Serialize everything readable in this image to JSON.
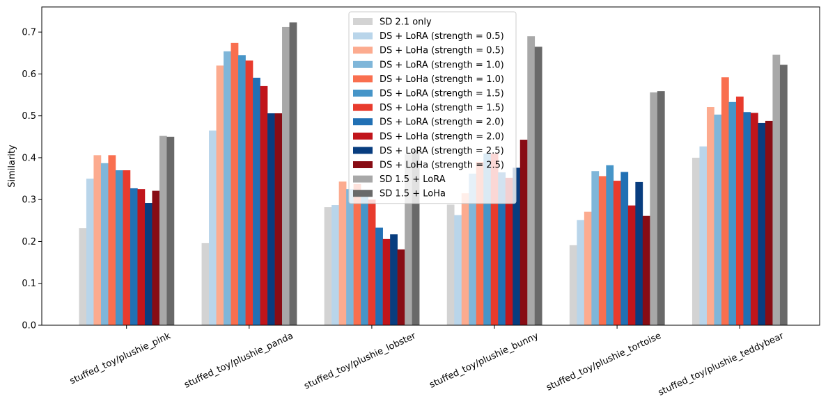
{
  "chart_data": {
    "type": "bar",
    "title": "",
    "xlabel": "",
    "ylabel": "Similarity",
    "ylim": [
      0,
      0.76
    ],
    "yticks": [
      0.0,
      0.1,
      0.2,
      0.3,
      0.4,
      0.5,
      0.6,
      0.7
    ],
    "ytick_labels": [
      "0.0",
      "0.1",
      "0.2",
      "0.3",
      "0.4",
      "0.5",
      "0.6",
      "0.7"
    ],
    "legend_position": "top-center",
    "categories": [
      "stuffed_toy/plushie_pink",
      "stuffed_toy/plushie_panda",
      "stuffed_toy/plushie_lobster",
      "stuffed_toy/plushie_bunny",
      "stuffed_toy/plushie_tortoise",
      "stuffed_toy/plushie_teddybear"
    ],
    "series": [
      {
        "name": "SD 2.1 only",
        "color": "#d3d3d3",
        "values": [
          0.232,
          0.196,
          0.282,
          0.288,
          0.191,
          0.4
        ]
      },
      {
        "name": "DS + LoRA (strength = 0.5)",
        "color": "#b9d5ea",
        "values": [
          0.35,
          0.465,
          0.287,
          0.263,
          0.251,
          0.427
        ]
      },
      {
        "name": "DS + LoHa (strength = 0.5)",
        "color": "#fcab8f",
        "values": [
          0.406,
          0.62,
          0.343,
          0.315,
          0.271,
          0.521
        ]
      },
      {
        "name": "DS + LoRA (strength = 1.0)",
        "color": "#7fb6d9",
        "values": [
          0.387,
          0.654,
          0.325,
          0.362,
          0.368,
          0.503
        ]
      },
      {
        "name": "DS + LoHa (strength = 1.0)",
        "color": "#f96f4f",
        "values": [
          0.406,
          0.674,
          0.337,
          0.39,
          0.356,
          0.592
        ]
      },
      {
        "name": "DS + LoRA (strength = 1.5)",
        "color": "#4695c8",
        "values": [
          0.37,
          0.645,
          0.314,
          0.41,
          0.382,
          0.533
        ]
      },
      {
        "name": "DS + LoHa (strength = 1.5)",
        "color": "#e83b2d",
        "values": [
          0.37,
          0.632,
          0.3,
          0.41,
          0.345,
          0.546
        ]
      },
      {
        "name": "DS + LoRA (strength = 2.0)",
        "color": "#2170b4",
        "values": [
          0.327,
          0.591,
          0.233,
          0.365,
          0.366,
          0.509
        ]
      },
      {
        "name": "DS + LoHa (strength = 2.0)",
        "color": "#c1151b",
        "values": [
          0.325,
          0.571,
          0.206,
          0.352,
          0.286,
          0.507
        ]
      },
      {
        "name": "DS + LoRA (strength = 2.5)",
        "color": "#083d7f",
        "values": [
          0.292,
          0.506,
          0.217,
          0.376,
          0.342,
          0.483
        ]
      },
      {
        "name": "DS + LoHa (strength = 2.5)",
        "color": "#880c14",
        "values": [
          0.321,
          0.506,
          0.181,
          0.443,
          0.261,
          0.488
        ]
      },
      {
        "name": "SD 1.5 + LoRA",
        "color": "#a8a8a8",
        "values": [
          0.452,
          0.712,
          0.408,
          0.69,
          0.556,
          0.646
        ]
      },
      {
        "name": "SD 1.5 + LoHa",
        "color": "#696969",
        "values": [
          0.45,
          0.723,
          0.417,
          0.665,
          0.559,
          0.622
        ]
      }
    ]
  }
}
